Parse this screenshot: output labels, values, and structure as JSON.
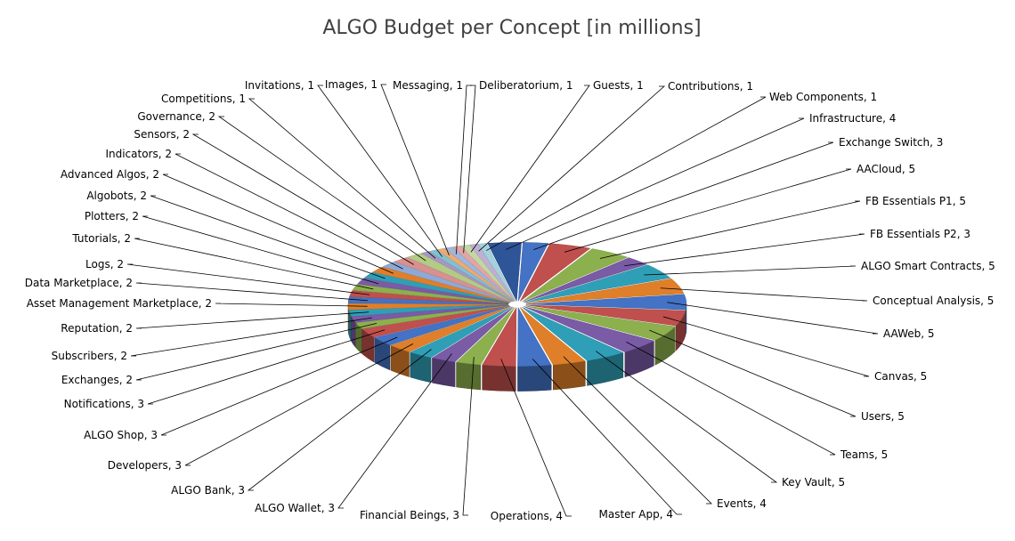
{
  "chart_data": {
    "type": "pie",
    "title": "ALGO Budget per Concept [in millions]",
    "legend": "none",
    "style": "3d-exploded",
    "slices": [
      {
        "label": "Exchange Switch",
        "value": 3,
        "color": "#4472C4"
      },
      {
        "label": "AACloud",
        "value": 5,
        "color": "#C0504D"
      },
      {
        "label": "FB Essentials  P1",
        "value": 5,
        "color": "#8DB04E"
      },
      {
        "label": "FB Essentials  P2",
        "value": 3,
        "color": "#7A5BA6"
      },
      {
        "label": "ALGO Smart Contracts",
        "value": 5,
        "color": "#2F9FB8"
      },
      {
        "label": "Conceptual Analysis",
        "value": 5,
        "color": "#E07F2A"
      },
      {
        "label": "AAWeb",
        "value": 5,
        "color": "#4472C4"
      },
      {
        "label": "Canvas",
        "value": 5,
        "color": "#C0504D"
      },
      {
        "label": "Users",
        "value": 5,
        "color": "#8DB04E"
      },
      {
        "label": "Teams",
        "value": 5,
        "color": "#7A5BA6"
      },
      {
        "label": "Key Vault",
        "value": 5,
        "color": "#2F9FB8"
      },
      {
        "label": "Events",
        "value": 4,
        "color": "#E07F2A"
      },
      {
        "label": "Master App",
        "value": 4,
        "color": "#4472C4"
      },
      {
        "label": "Operations",
        "value": 4,
        "color": "#C0504D"
      },
      {
        "label": "Financial Beings",
        "value": 3,
        "color": "#8DB04E"
      },
      {
        "label": "ALGO Wallet",
        "value": 3,
        "color": "#7A5BA6"
      },
      {
        "label": "ALGO Bank",
        "value": 3,
        "color": "#2F9FB8"
      },
      {
        "label": "Developers",
        "value": 3,
        "color": "#E07F2A"
      },
      {
        "label": "ALGO Shop",
        "value": 3,
        "color": "#4472C4"
      },
      {
        "label": "Notifications",
        "value": 3,
        "color": "#C0504D"
      },
      {
        "label": "Exchanges",
        "value": 2,
        "color": "#8DB04E"
      },
      {
        "label": "Subscribers",
        "value": 2,
        "color": "#7A5BA6"
      },
      {
        "label": "Reputation",
        "value": 2,
        "color": "#2F9FB8"
      },
      {
        "label": "Asset Management  Marketplace",
        "value": 2,
        "color": "#E07F2A"
      },
      {
        "label": "Data Marketplace",
        "value": 2,
        "color": "#4472C4"
      },
      {
        "label": "Logs",
        "value": 2,
        "color": "#C0504D"
      },
      {
        "label": "Tutorials",
        "value": 2,
        "color": "#8DB04E"
      },
      {
        "label": "Plotters",
        "value": 2,
        "color": "#7A5BA6"
      },
      {
        "label": "Algobots",
        "value": 2,
        "color": "#2F9FB8"
      },
      {
        "label": "Advanced Algos",
        "value": 2,
        "color": "#E07F2A"
      },
      {
        "label": "Indicators",
        "value": 2,
        "color": "#8FA9D6"
      },
      {
        "label": "Sensors",
        "value": 2,
        "color": "#D9908E"
      },
      {
        "label": "Governance",
        "value": 2,
        "color": "#B3CB86"
      },
      {
        "label": "Competitions",
        "value": 1,
        "color": "#A896C4"
      },
      {
        "label": "Invitations",
        "value": 1,
        "color": "#7FC3D3"
      },
      {
        "label": "Images",
        "value": 1,
        "color": "#EDAA75"
      },
      {
        "label": "Messaging",
        "value": 1,
        "color": "#9FB6DD"
      },
      {
        "label": "Deliberatorium",
        "value": 1,
        "color": "#E1A6A4"
      },
      {
        "label": "Guests",
        "value": 1,
        "color": "#C4D7A2"
      },
      {
        "label": "Contributions",
        "value": 1,
        "color": "#BDB0D4"
      },
      {
        "label": "Web Components",
        "value": 1,
        "color": "#A3D2DF"
      },
      {
        "label": "Infrastructure",
        "value": 4,
        "color": "#2E5597"
      }
    ]
  }
}
